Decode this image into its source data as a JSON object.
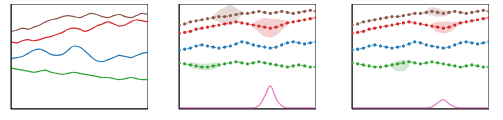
{
  "chart_data": [
    {
      "type": "line",
      "tick_labels": false,
      "xlim": [
        0,
        24
      ],
      "ylim": [
        0,
        10
      ],
      "xticks": [],
      "yticks": [],
      "x": [
        0,
        1,
        2,
        3,
        4,
        5,
        6,
        7,
        8,
        9,
        10,
        11,
        12,
        13,
        14,
        15,
        16,
        17,
        18,
        19,
        20,
        21,
        22,
        23,
        24
      ],
      "series": [
        {
          "color": "#8c564b",
          "line_style": "solid",
          "marker": "none",
          "values": [
            7.4,
            7.5,
            7.7,
            7.6,
            7.8,
            8.0,
            8.3,
            8.5,
            8.6,
            8.8,
            8.9,
            8.8,
            8.7,
            8.9,
            9.1,
            9.0,
            8.8,
            8.7,
            8.9,
            9.0,
            8.8,
            8.7,
            8.9,
            9.1,
            9.0
          ]
        },
        {
          "color": "#d62728",
          "line_style": "solid",
          "marker": "none",
          "values": [
            6.4,
            6.3,
            6.5,
            6.6,
            6.5,
            6.6,
            6.8,
            6.9,
            7.1,
            7.3,
            7.6,
            7.7,
            7.6,
            7.4,
            7.6,
            7.9,
            8.1,
            8.3,
            8.1,
            7.9,
            8.0,
            8.3,
            8.5,
            8.4,
            8.3
          ]
        },
        {
          "color": "#1f77b4",
          "line_style": "solid",
          "marker": "none",
          "values": [
            4.8,
            4.9,
            5.0,
            5.3,
            5.6,
            5.7,
            5.5,
            5.2,
            5.1,
            5.2,
            5.6,
            6.0,
            5.9,
            5.5,
            5.0,
            4.6,
            4.5,
            4.7,
            4.9,
            5.1,
            5.0,
            4.9,
            5.1,
            5.3,
            5.4
          ]
        },
        {
          "color": "#2ca02c",
          "line_style": "solid",
          "marker": "none",
          "values": [
            3.9,
            3.8,
            3.7,
            3.6,
            3.5,
            3.6,
            3.7,
            3.5,
            3.4,
            3.3,
            3.4,
            3.5,
            3.4,
            3.3,
            3.2,
            3.1,
            3.0,
            3.0,
            2.9,
            2.8,
            2.9,
            3.0,
            2.9,
            2.8,
            2.8
          ]
        }
      ]
    },
    {
      "type": "line",
      "tick_labels": false,
      "xlim": [
        0,
        24
      ],
      "ylim": [
        0,
        10
      ],
      "xticks": [],
      "yticks": [],
      "x": [
        0,
        1,
        2,
        3,
        4,
        5,
        6,
        7,
        8,
        9,
        10,
        11,
        12,
        13,
        14,
        15,
        16,
        17,
        18,
        19,
        20,
        21,
        22,
        23,
        24
      ],
      "series": [
        {
          "color": "#8c564b",
          "line_style": "dotted",
          "marker": "circle",
          "values": [
            8.0,
            8.1,
            8.3,
            8.4,
            8.5,
            8.6,
            8.7,
            8.8,
            8.8,
            8.9,
            9.0,
            9.1,
            9.1,
            9.2,
            9.3,
            9.2,
            9.1,
            9.2,
            9.3,
            9.2,
            9.1,
            9.2,
            9.3,
            9.4,
            9.3
          ],
          "lower": [
            null,
            null,
            null,
            null,
            null,
            null,
            8.5,
            8.3,
            8.0,
            8.0,
            8.4,
            8.9,
            null,
            null,
            null,
            null,
            null,
            null,
            null,
            null,
            null,
            null,
            null,
            null,
            null
          ],
          "upper": [
            null,
            null,
            null,
            null,
            null,
            null,
            8.9,
            9.4,
            9.7,
            9.9,
            9.6,
            9.3,
            null,
            null,
            null,
            null,
            null,
            null,
            null,
            null,
            null,
            null,
            null,
            null,
            null
          ]
        },
        {
          "color": "#d62728",
          "line_style": "dotted",
          "marker": "circle",
          "values": [
            7.2,
            7.3,
            7.4,
            7.6,
            7.7,
            7.8,
            7.9,
            8.0,
            8.1,
            8.2,
            8.3,
            8.2,
            8.1,
            8.0,
            7.9,
            7.8,
            7.7,
            7.8,
            8.0,
            8.2,
            8.3,
            8.4,
            8.5,
            8.6,
            8.7
          ],
          "lower": [
            null,
            null,
            null,
            null,
            null,
            null,
            null,
            null,
            null,
            null,
            null,
            null,
            null,
            7.8,
            7.3,
            6.9,
            6.8,
            7.0,
            7.5,
            8.0,
            null,
            null,
            null,
            null,
            null
          ],
          "upper": [
            null,
            null,
            null,
            null,
            null,
            null,
            null,
            null,
            null,
            null,
            null,
            null,
            null,
            8.2,
            8.5,
            8.7,
            8.6,
            8.6,
            8.5,
            8.4,
            null,
            null,
            null,
            null,
            null
          ]
        },
        {
          "color": "#1f77b4",
          "line_style": "dotted",
          "marker": "circle",
          "values": [
            5.6,
            5.7,
            5.8,
            6.0,
            6.1,
            6.0,
            5.9,
            5.8,
            5.9,
            6.0,
            6.2,
            6.4,
            6.3,
            6.1,
            6.0,
            5.9,
            5.8,
            5.9,
            6.1,
            6.3,
            6.4,
            6.3,
            6.2,
            6.3,
            6.4
          ]
        },
        {
          "color": "#2ca02c",
          "line_style": "dotted",
          "marker": "circle",
          "values": [
            4.4,
            4.3,
            4.2,
            4.1,
            4.0,
            4.0,
            4.1,
            4.2,
            4.3,
            4.4,
            4.5,
            4.4,
            4.3,
            4.4,
            4.5,
            4.4,
            4.3,
            4.2,
            4.1,
            4.0,
            4.1,
            4.2,
            4.1,
            4.0,
            4.0
          ],
          "lower": [
            null,
            null,
            3.9,
            3.8,
            3.7,
            3.7,
            3.8,
            4.0,
            null,
            null,
            null,
            null,
            null,
            null,
            null,
            null,
            null,
            null,
            null,
            null,
            null,
            null,
            null,
            null,
            null
          ],
          "upper": [
            null,
            null,
            4.5,
            4.4,
            4.3,
            4.3,
            4.4,
            4.4,
            null,
            null,
            null,
            null,
            null,
            null,
            null,
            null,
            null,
            null,
            null,
            null,
            null,
            null,
            null,
            null,
            null
          ]
        },
        {
          "color": "#e377c2",
          "line_style": "solid",
          "marker": "none",
          "values": [
            0.1,
            0.1,
            0.1,
            0.1,
            0.1,
            0.1,
            0.1,
            0.1,
            0.1,
            0.1,
            0.1,
            0.1,
            0.1,
            0.1,
            0.3,
            1.2,
            2.2,
            1.0,
            0.3,
            0.1,
            0.1,
            0.1,
            0.1,
            0.1,
            0.1
          ]
        }
      ]
    },
    {
      "type": "line",
      "tick_labels": false,
      "xlim": [
        0,
        24
      ],
      "ylim": [
        0,
        10
      ],
      "xticks": [],
      "yticks": [],
      "x": [
        0,
        1,
        2,
        3,
        4,
        5,
        6,
        7,
        8,
        9,
        10,
        11,
        12,
        13,
        14,
        15,
        16,
        17,
        18,
        19,
        20,
        21,
        22,
        23,
        24
      ],
      "series": [
        {
          "color": "#8c564b",
          "line_style": "dotted",
          "marker": "circle",
          "values": [
            8.0,
            8.1,
            8.3,
            8.4,
            8.5,
            8.6,
            8.7,
            8.8,
            8.8,
            8.9,
            9.0,
            9.1,
            9.1,
            9.2,
            9.3,
            9.2,
            9.1,
            9.2,
            9.3,
            9.2,
            9.1,
            9.2,
            9.3,
            9.4,
            9.3
          ],
          "lower": [
            null,
            null,
            null,
            null,
            null,
            null,
            null,
            null,
            null,
            null,
            null,
            null,
            null,
            9.0,
            8.9,
            8.8,
            8.8,
            9.0,
            null,
            null,
            null,
            null,
            null,
            null,
            null
          ],
          "upper": [
            null,
            null,
            null,
            null,
            null,
            null,
            null,
            null,
            null,
            null,
            null,
            null,
            null,
            9.4,
            9.7,
            9.6,
            9.4,
            9.4,
            null,
            null,
            null,
            null,
            null,
            null,
            null
          ]
        },
        {
          "color": "#d62728",
          "line_style": "dotted",
          "marker": "circle",
          "values": [
            7.2,
            7.3,
            7.4,
            7.6,
            7.7,
            7.8,
            7.9,
            8.0,
            8.1,
            8.2,
            8.3,
            8.2,
            8.1,
            8.0,
            7.9,
            7.8,
            7.7,
            7.8,
            8.0,
            8.2,
            8.3,
            8.4,
            8.5,
            8.6,
            8.7
          ],
          "lower": [
            null,
            null,
            null,
            null,
            null,
            null,
            null,
            null,
            null,
            null,
            null,
            null,
            null,
            null,
            7.7,
            7.3,
            7.2,
            7.3,
            7.7,
            8.1,
            null,
            null,
            null,
            null,
            null
          ],
          "upper": [
            null,
            null,
            null,
            null,
            null,
            null,
            null,
            null,
            null,
            null,
            null,
            null,
            null,
            null,
            8.1,
            8.3,
            8.3,
            8.3,
            8.3,
            8.3,
            null,
            null,
            null,
            null,
            null
          ]
        },
        {
          "color": "#1f77b4",
          "line_style": "dotted",
          "marker": "circle",
          "values": [
            5.6,
            5.7,
            5.8,
            6.0,
            6.1,
            6.0,
            5.9,
            5.8,
            5.9,
            6.0,
            6.2,
            6.4,
            6.3,
            6.1,
            6.0,
            5.9,
            5.8,
            5.9,
            6.1,
            6.3,
            6.4,
            6.3,
            6.2,
            6.3,
            6.4
          ]
        },
        {
          "color": "#2ca02c",
          "line_style": "dotted",
          "marker": "circle",
          "values": [
            4.4,
            4.3,
            4.2,
            4.1,
            4.0,
            4.0,
            4.1,
            4.2,
            4.3,
            4.4,
            4.5,
            4.4,
            4.3,
            4.4,
            4.5,
            4.4,
            4.3,
            4.2,
            4.1,
            4.0,
            4.1,
            4.2,
            4.1,
            4.0,
            4.0
          ],
          "lower": [
            null,
            null,
            null,
            null,
            null,
            null,
            null,
            3.9,
            3.6,
            3.6,
            4.1,
            null,
            null,
            null,
            null,
            null,
            null,
            null,
            null,
            null,
            null,
            null,
            null,
            null,
            null
          ],
          "upper": [
            null,
            null,
            null,
            null,
            null,
            null,
            null,
            4.4,
            4.6,
            4.7,
            4.7,
            null,
            null,
            null,
            null,
            null,
            null,
            null,
            null,
            null,
            null,
            null,
            null,
            null,
            null
          ]
        },
        {
          "color": "#e377c2",
          "line_style": "solid",
          "marker": "none",
          "values": [
            0.1,
            0.1,
            0.1,
            0.1,
            0.1,
            0.1,
            0.1,
            0.1,
            0.1,
            0.1,
            0.1,
            0.1,
            0.1,
            0.1,
            0.2,
            0.6,
            0.9,
            0.5,
            0.2,
            0.1,
            0.1,
            0.1,
            0.1,
            0.1,
            0.1
          ]
        }
      ]
    }
  ]
}
